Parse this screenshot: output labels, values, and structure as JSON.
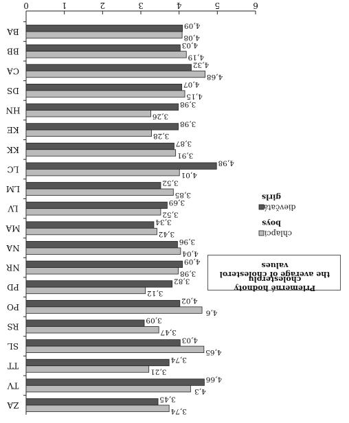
{
  "chart_data": {
    "type": "bar",
    "orientation": "horizontal",
    "rendered_rotated_180_degrees": true,
    "categories": [
      "BA",
      "BB",
      "CA",
      "DS",
      "HN",
      "KE",
      "KK",
      "LC",
      "LM",
      "LV",
      "MA",
      "NA",
      "NR",
      "PD",
      "PO",
      "RS",
      "SL",
      "TT",
      "TV",
      "ZA"
    ],
    "series": [
      {
        "name": "dievčatá",
        "color": "#555555",
        "values": [
          4.09,
          4.03,
          4.32,
          4.07,
          3.98,
          3.98,
          3.87,
          4.98,
          3.52,
          3.69,
          3.34,
          3.96,
          4.09,
          3.82,
          4.02,
          3.09,
          4.03,
          3.74,
          4.66,
          3.45
        ],
        "labels": [
          "4,09",
          "4,03",
          "4,32",
          "4,07",
          "3,98",
          "3,98",
          "3,87",
          "4,98",
          "3,52",
          "3,69",
          "3,34",
          "3,96",
          "4,09",
          "3,82",
          "4,02",
          "3,09",
          "4,03",
          "3,74",
          "4,66",
          "3,45"
        ]
      },
      {
        "name": "chlapci",
        "color": "#bbbbbb",
        "values": [
          4.08,
          4.19,
          4.68,
          4.15,
          3.26,
          3.28,
          3.91,
          4.01,
          3.85,
          3.52,
          3.42,
          4.04,
          3.98,
          3.12,
          4.6,
          3.47,
          4.65,
          3.21,
          4.3,
          3.74
        ],
        "labels": [
          "4,08",
          "4,19",
          "4,68",
          "4,15",
          "3,26",
          "3,28",
          "3,91",
          "4,01",
          "3,85",
          "3,52",
          "3,42",
          "4,04",
          "3,98",
          "3,12",
          "4,6",
          "3,47",
          "4,65",
          "3,21",
          "4,3",
          "3,74"
        ]
      }
    ],
    "xlim": [
      0,
      6
    ],
    "xticks": [
      "0",
      "1",
      "2",
      "3",
      "4",
      "5",
      "6"
    ],
    "legend": [
      {
        "label": "dievčatá",
        "sublabel": "girls",
        "color": "#555555"
      },
      {
        "label": "chlapci",
        "sublabel": "boys",
        "color": "#bbbbbb"
      }
    ],
    "legend_placement": "right",
    "note_lines": [
      "Priemerné hodnoty cholesterolu",
      "the average of cholesterol values"
    ],
    "grid": false
  }
}
